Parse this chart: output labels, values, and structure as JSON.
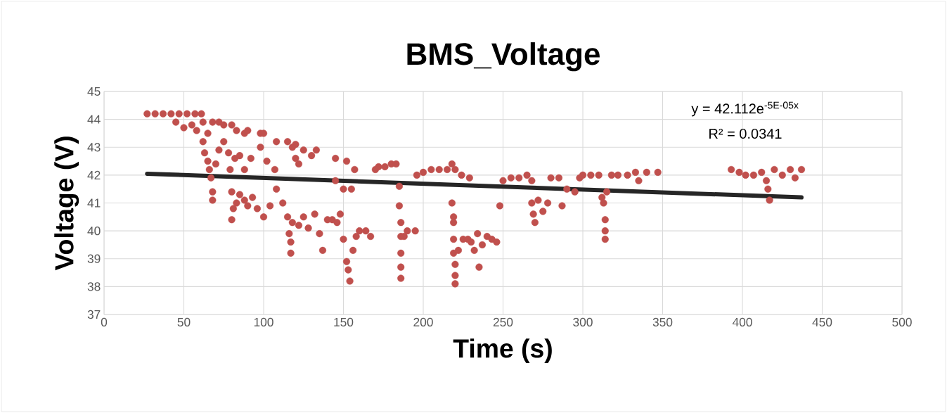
{
  "chart_data": {
    "type": "scatter",
    "title": "BMS_Voltage",
    "xlabel": "Time (s)",
    "ylabel": "Voltage (V)",
    "annotations": [
      "y = 42.112e$^{-5E-05x}$",
      "R² = 0.0341"
    ],
    "xlim": [
      0,
      500
    ],
    "xticks": [
      0,
      50,
      100,
      150,
      200,
      250,
      300,
      350,
      400,
      450,
      500
    ],
    "ylim": [
      37,
      45
    ],
    "yticks": [
      37,
      38,
      39,
      40,
      41,
      42,
      43,
      44,
      45
    ],
    "grid": true,
    "series": [
      {
        "marker": "circle",
        "color": "#c0504d",
        "x": [
          27,
          32,
          37,
          42,
          47,
          52,
          57,
          61,
          45,
          50,
          55,
          58,
          62,
          65,
          68,
          72,
          75,
          80,
          83,
          88,
          90,
          98,
          100,
          108,
          115,
          120,
          125,
          133,
          145,
          152,
          157,
          62,
          63,
          65,
          66,
          67,
          68,
          68,
          70,
          72,
          75,
          78,
          79,
          80,
          82,
          85,
          88,
          92,
          98,
          102,
          107,
          118,
          120,
          122,
          130,
          145,
          150,
          155,
          80,
          81,
          83,
          85,
          88,
          90,
          93,
          96,
          100,
          104,
          108,
          112,
          115,
          116,
          117,
          117,
          118,
          122,
          125,
          128,
          132,
          135,
          137,
          140,
          143,
          146,
          148,
          150,
          152,
          153,
          154,
          156,
          158,
          160,
          164,
          167,
          170,
          172,
          176,
          180,
          183,
          185,
          185,
          186,
          186,
          186,
          186,
          186,
          188,
          190,
          195,
          196,
          200,
          205,
          210,
          215,
          218,
          220,
          218,
          219,
          219,
          219,
          219,
          220,
          220,
          220,
          222,
          225,
          228,
          230,
          232,
          234,
          235,
          237,
          240,
          243,
          246,
          224,
          229,
          248,
          250,
          255,
          260,
          265,
          268,
          268,
          269,
          270,
          272,
          275,
          278,
          280,
          285,
          287,
          290,
          295,
          298,
          300,
          305,
          310,
          312,
          313,
          314,
          314,
          314,
          315,
          318,
          322,
          328,
          333,
          335,
          340,
          347,
          393,
          398,
          402,
          407,
          412,
          415,
          416,
          417,
          420,
          425,
          430,
          437,
          433
        ],
        "values": [
          44.2,
          44.2,
          44.2,
          44.2,
          44.2,
          44.2,
          44.2,
          44.2,
          43.9,
          43.7,
          43.8,
          43.6,
          43.9,
          43.5,
          43.9,
          43.9,
          43.8,
          43.8,
          43.6,
          43.5,
          43.6,
          43.5,
          43.5,
          43.2,
          43.2,
          43.1,
          42.9,
          42.9,
          42.6,
          42.5,
          42.2,
          43.2,
          42.8,
          42.5,
          42.2,
          41.9,
          41.4,
          41.1,
          42.4,
          42.9,
          43.2,
          42.8,
          42.2,
          41.4,
          42.6,
          42.7,
          42.2,
          42.6,
          43.0,
          42.5,
          42.2,
          43.0,
          42.6,
          42.4,
          42.7,
          41.8,
          41.5,
          41.5,
          40.4,
          40.8,
          41.0,
          41.3,
          41.1,
          40.9,
          41.2,
          40.8,
          40.5,
          40.9,
          41.5,
          41.0,
          40.5,
          39.9,
          39.6,
          39.2,
          40.3,
          40.2,
          40.5,
          40.1,
          40.6,
          39.9,
          39.3,
          40.4,
          40.4,
          40.3,
          40.6,
          39.7,
          38.9,
          38.6,
          38.2,
          39.3,
          39.8,
          40.0,
          40.0,
          39.8,
          42.2,
          42.3,
          42.3,
          42.4,
          42.4,
          41.6,
          40.9,
          40.3,
          39.8,
          39.2,
          38.7,
          38.3,
          39.8,
          40.0,
          40.0,
          42.0,
          42.1,
          42.2,
          42.2,
          42.2,
          42.4,
          42.2,
          41.0,
          40.5,
          40.3,
          39.7,
          39.2,
          38.8,
          38.4,
          38.1,
          39.3,
          39.7,
          39.7,
          39.6,
          39.3,
          39.9,
          38.7,
          39.5,
          39.8,
          39.7,
          39.6,
          42.0,
          41.9,
          40.9,
          41.8,
          41.9,
          41.9,
          42.0,
          41.8,
          41.0,
          40.6,
          40.3,
          41.1,
          40.7,
          41.0,
          41.9,
          41.9,
          40.9,
          41.5,
          41.4,
          41.9,
          42.0,
          42.0,
          42.0,
          41.2,
          41.0,
          40.4,
          40.0,
          39.7,
          41.4,
          42.0,
          42.0,
          42.0,
          42.1,
          41.8,
          42.1,
          42.1,
          42.2,
          42.1,
          42.0,
          42.0,
          42.1,
          41.8,
          41.5,
          41.1,
          42.2,
          42.0,
          42.2,
          42.2,
          41.9
        ]
      },
      {
        "type": "line",
        "marker": "none",
        "line_style": "solid",
        "color": "#262626",
        "x": [
          27,
          437
        ],
        "values": [
          42.05,
          41.2
        ]
      }
    ]
  }
}
